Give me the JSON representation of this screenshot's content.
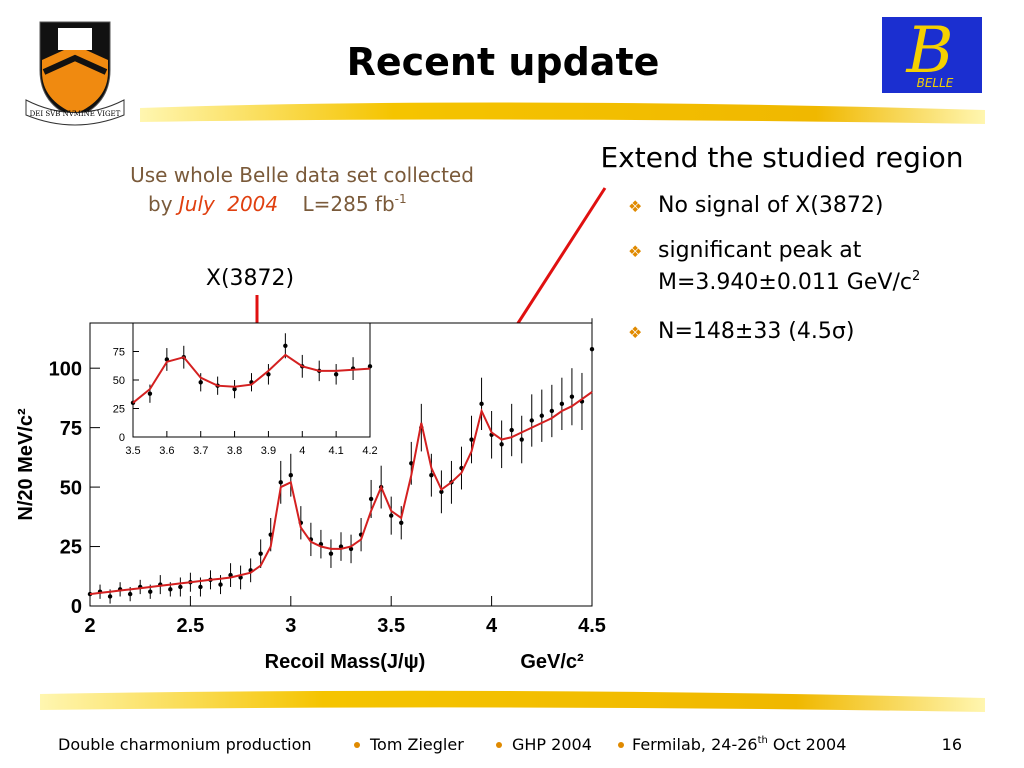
{
  "slide": {
    "title": "Recent update",
    "logo_left_motto": "DEI SVB NVMINE VIGET",
    "logo_right_text": "BELLE",
    "subtitle_line1": "Use whole Belle data set collected",
    "subtitle_by": "by",
    "subtitle_month": "July",
    "subtitle_year": "2004",
    "subtitle_lumi": "L=285 fb",
    "subtitle_lumi_sup": "-1",
    "annotation_x3872": "X(3872)",
    "heading": "Extend the studied region",
    "bullets": [
      {
        "text": "No signal of X(3872)"
      },
      {
        "line1": "significant peak at",
        "line2": "M=3.940±0.011 GeV/c",
        "sup": "2"
      },
      {
        "text": "N=148±33 (4.5σ)"
      }
    ],
    "footer": {
      "talk": "Double charmonium production",
      "author": "Tom Ziegler",
      "conf": "GHP 2004",
      "place": "Fermilab, 24-26",
      "place_sup": "th",
      "date": " Oct 2004",
      "page": "16"
    }
  },
  "chart_data": [
    {
      "type": "scatter",
      "ylabel": "N/20 MeV/c²",
      "xlabel": "Recoil Mass(J/ψ)",
      "xunit": "GeV/c²",
      "xlim": [
        2,
        4.5
      ],
      "ylim": [
        0,
        119
      ],
      "xticks": [
        2,
        2.5,
        3,
        3.5,
        4,
        4.5
      ],
      "yticks": [
        0,
        25,
        50,
        75,
        100
      ],
      "x": [
        2.0,
        2.05,
        2.1,
        2.15,
        2.2,
        2.25,
        2.3,
        2.35,
        2.4,
        2.45,
        2.5,
        2.55,
        2.6,
        2.65,
        2.7,
        2.75,
        2.8,
        2.85,
        2.9,
        2.95,
        3.0,
        3.05,
        3.1,
        3.15,
        3.2,
        3.25,
        3.3,
        3.35,
        3.4,
        3.45,
        3.5,
        3.55,
        3.6,
        3.65,
        3.7,
        3.75,
        3.8,
        3.85,
        3.9,
        3.95,
        4.0,
        4.05,
        4.1,
        4.15,
        4.2,
        4.25,
        4.3,
        4.35,
        4.4,
        4.45,
        4.5
      ],
      "series": [
        {
          "color": "#000000",
          "values": [
            5,
            6,
            4,
            7,
            5,
            8,
            6,
            9,
            7,
            8,
            10,
            8,
            11,
            9,
            13,
            12,
            15,
            22,
            30,
            52,
            55,
            35,
            28,
            26,
            22,
            25,
            24,
            30,
            45,
            50,
            38,
            35,
            60,
            75,
            55,
            48,
            52,
            58,
            70,
            85,
            72,
            68,
            74,
            70,
            78,
            80,
            82,
            85,
            88,
            86,
            108
          ],
          "errors": [
            3,
            3,
            3,
            3,
            3,
            3,
            3,
            4,
            3,
            4,
            4,
            4,
            4,
            4,
            5,
            5,
            5,
            6,
            7,
            9,
            9,
            7,
            7,
            6,
            6,
            6,
            6,
            7,
            8,
            9,
            8,
            7,
            9,
            10,
            9,
            9,
            9,
            9,
            10,
            11,
            10,
            10,
            11,
            10,
            11,
            11,
            11,
            11,
            12,
            12,
            13
          ]
        },
        {
          "type": "line",
          "color": "#d42020",
          "values": [
            5,
            5.5,
            6,
            6.5,
            7,
            7.5,
            8,
            8.5,
            9,
            9.5,
            10,
            10.5,
            11,
            11.5,
            12,
            13,
            14,
            17,
            25,
            50,
            52,
            33,
            27,
            25,
            24,
            24,
            25,
            28,
            40,
            50,
            40,
            37,
            55,
            77,
            58,
            49,
            52,
            56,
            65,
            82,
            73,
            70,
            71,
            73,
            75,
            77,
            79,
            82,
            84,
            87,
            90
          ]
        }
      ]
    },
    {
      "type": "scatter",
      "xlim": [
        3.5,
        4.2
      ],
      "ylim": [
        0,
        100
      ],
      "xticks": [
        3.5,
        3.6,
        3.7,
        3.8,
        3.9,
        4,
        4.1,
        4.2
      ],
      "yticks": [
        0,
        25,
        50,
        75
      ],
      "x": [
        3.5,
        3.55,
        3.6,
        3.65,
        3.7,
        3.75,
        3.8,
        3.85,
        3.9,
        3.95,
        4.0,
        4.05,
        4.1,
        4.15,
        4.2
      ],
      "series": [
        {
          "color": "#000000",
          "values": [
            30,
            38,
            68,
            70,
            48,
            45,
            42,
            48,
            55,
            80,
            62,
            58,
            55,
            60,
            62
          ],
          "errors": [
            7,
            8,
            10,
            10,
            8,
            8,
            8,
            8,
            9,
            11,
            10,
            9,
            9,
            10,
            10
          ]
        },
        {
          "type": "line",
          "color": "#d42020",
          "values": [
            30,
            42,
            66,
            70,
            52,
            45,
            44,
            46,
            58,
            72,
            62,
            58,
            58,
            59,
            60
          ]
        }
      ]
    }
  ]
}
